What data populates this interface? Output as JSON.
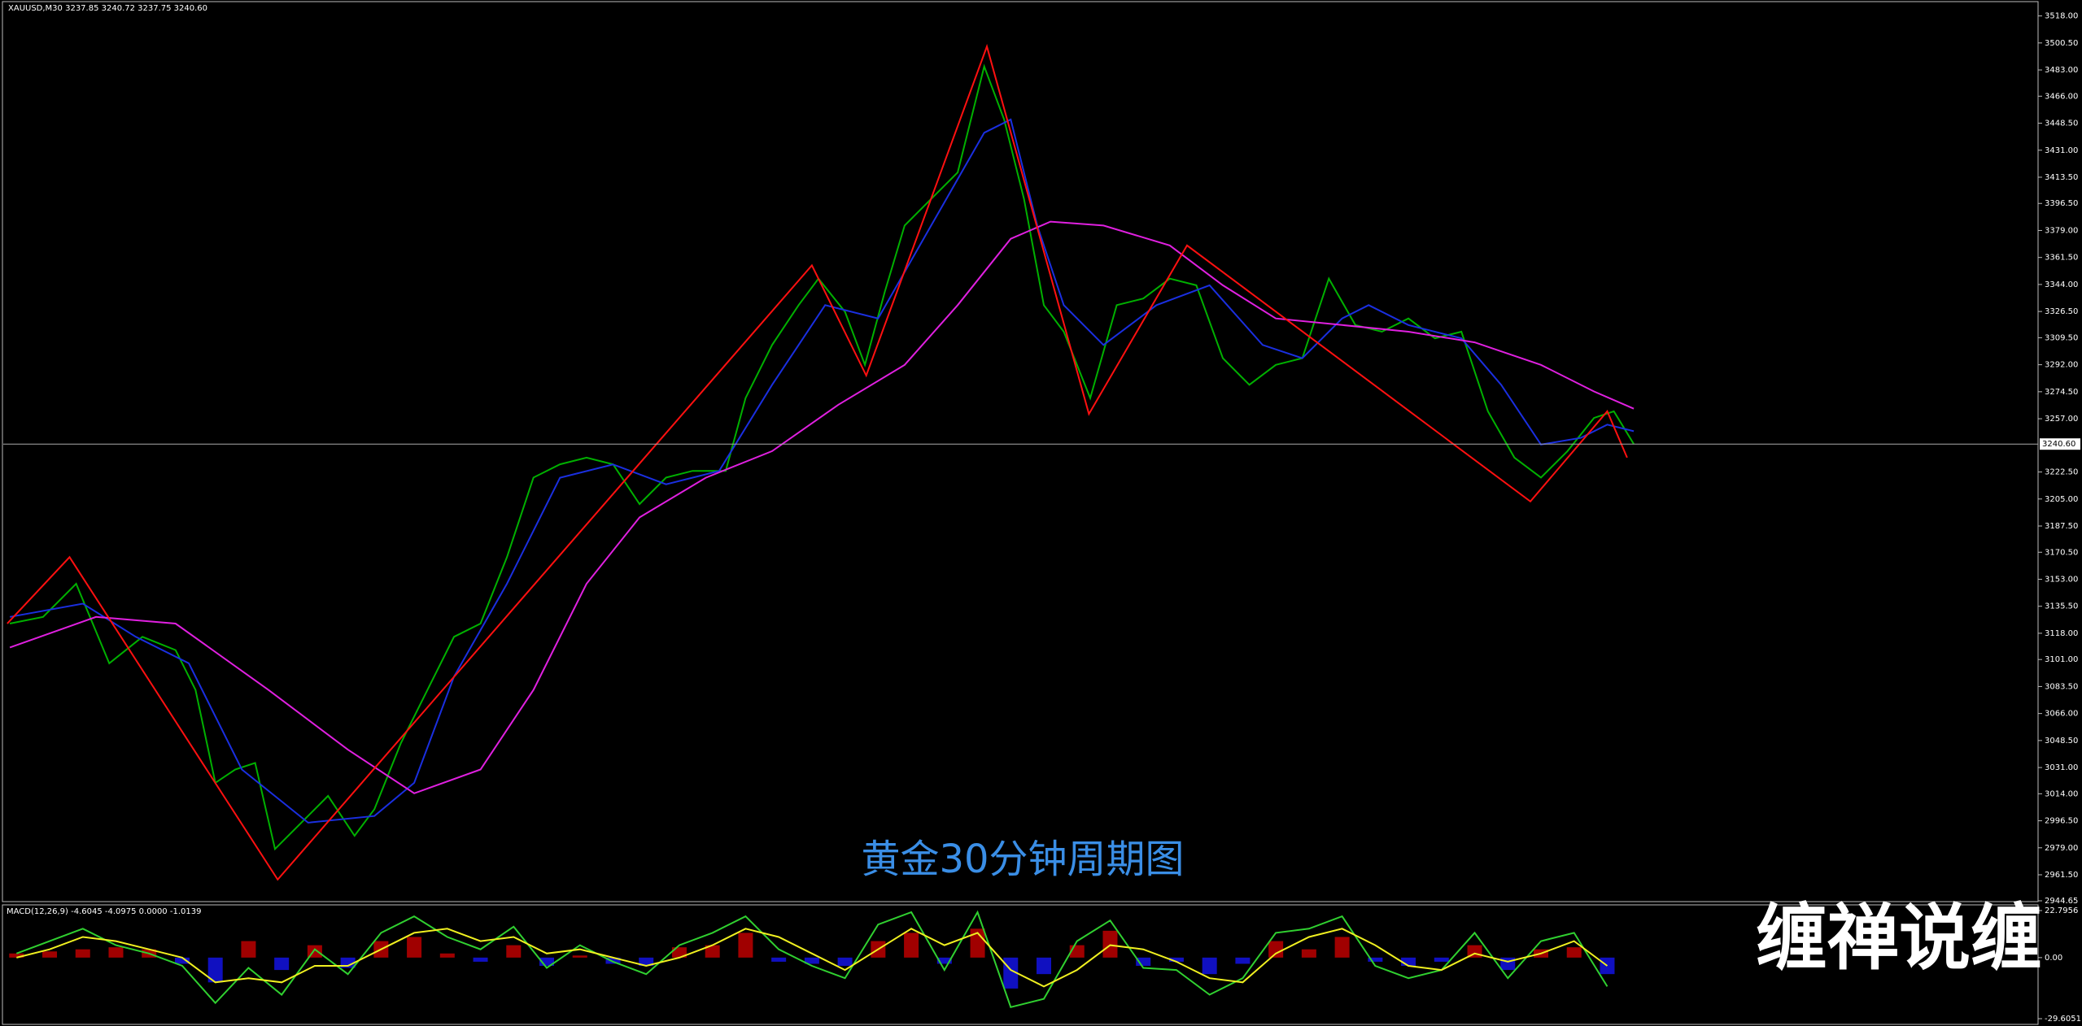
{
  "chart_data": [
    {
      "type": "line",
      "title": "XAUUSD,M30 3237.85 3240.72 3237.75 3240.60",
      "annotation": "黄金30分钟周期图",
      "xlim": [
        0,
        1535
      ],
      "ylim": [
        2944.65,
        3518
      ],
      "yticks": [
        {
          "value": 3518,
          "label": "3518.00"
        },
        {
          "value": 3500.5,
          "label": "3500.50"
        },
        {
          "value": 3483,
          "label": "3483.00"
        },
        {
          "value": 3466,
          "label": "3466.00"
        },
        {
          "value": 3448.5,
          "label": "3448.50"
        },
        {
          "value": 3431,
          "label": "3431.00"
        },
        {
          "value": 3413.5,
          "label": "3413.50"
        },
        {
          "value": 3396.5,
          "label": "3396.50"
        },
        {
          "value": 3379,
          "label": "3379.00"
        },
        {
          "value": 3361.5,
          "label": "3361.50"
        },
        {
          "value": 3344,
          "label": "3344.00"
        },
        {
          "value": 3326.5,
          "label": "3326.50"
        },
        {
          "value": 3309.5,
          "label": "3309.50"
        },
        {
          "value": 3292,
          "label": "3292.00"
        },
        {
          "value": 3274.5,
          "label": "3274.50"
        },
        {
          "value": 3257,
          "label": "3257.00"
        },
        {
          "value": 3222.5,
          "label": "3222.50"
        },
        {
          "value": 3205,
          "label": "3205.00"
        },
        {
          "value": 3187.5,
          "label": "3187.50"
        },
        {
          "value": 3170.5,
          "label": "3170.50"
        },
        {
          "value": 3153,
          "label": "3153.00"
        },
        {
          "value": 3135.5,
          "label": "3135.50"
        },
        {
          "value": 3118,
          "label": "3118.00"
        },
        {
          "value": 3101,
          "label": "3101.00"
        },
        {
          "value": 3083.5,
          "label": "3083.50"
        },
        {
          "value": 3066,
          "label": "3066.00"
        },
        {
          "value": 3048.5,
          "label": "3048.50"
        },
        {
          "value": 3031,
          "label": "3031.00"
        },
        {
          "value": 3014,
          "label": "3014.00"
        },
        {
          "value": 2996.5,
          "label": "2996.50"
        },
        {
          "value": 2979,
          "label": "2979.00"
        },
        {
          "value": 2961.5,
          "label": "2961.50"
        },
        {
          "value": 2944.65,
          "label": "2944.65"
        }
      ],
      "last_price": {
        "value": 3240.6,
        "label": "3240.60"
      },
      "series": [
        {
          "color": "#00b000",
          "x": [
            5,
            30,
            55,
            80,
            105,
            130,
            145,
            160,
            175,
            190,
            205,
            225,
            245,
            265,
            280,
            300,
            320,
            340,
            360,
            380,
            400,
            420,
            440,
            460,
            480,
            500,
            520,
            545,
            560,
            580,
            600,
            615,
            635,
            650,
            665,
            680,
            700,
            720,
            740,
            755,
            770,
            785,
            800,
            820,
            840,
            860,
            880,
            900,
            920,
            940,
            960,
            980,
            1000,
            1020,
            1040,
            1060,
            1080,
            1100,
            1120,
            1140,
            1160,
            1180,
            1200,
            1215,
            1230
          ],
          "values": [
            3124.3,
            3128.6,
            3150.1,
            3098.5,
            3115.7,
            3107.1,
            3081.3,
            3021.1,
            3029.7,
            3034.0,
            2978.2,
            2995.4,
            3012.6,
            2986.8,
            3004.0,
            3046.9,
            3081.3,
            3115.7,
            3124.3,
            3167.3,
            3218.9,
            3227.5,
            3231.8,
            3227.5,
            3201.7,
            3218.9,
            3223.2,
            3223.2,
            3270.4,
            3304.8,
            3330.6,
            3347.8,
            3326.3,
            3291.9,
            3339.2,
            3382.2,
            3399.4,
            3416.6,
            3485.3,
            3451.0,
            3399.4,
            3330.6,
            3313.4,
            3270.4,
            3330.6,
            3334.9,
            3347.8,
            3343.5,
            3296.2,
            3279.0,
            3291.9,
            3296.2,
            3347.8,
            3317.7,
            3313.4,
            3322.0,
            3309.1,
            3313.4,
            3261.8,
            3231.8,
            3218.9,
            3236.0,
            3257.5,
            3261.8,
            3240.6
          ]
        },
        {
          "color": "#1a2fe0",
          "x": [
            5,
            60,
            100,
            140,
            180,
            230,
            280,
            310,
            340,
            380,
            420,
            460,
            500,
            540,
            580,
            620,
            660,
            700,
            740,
            760,
            780,
            800,
            830,
            870,
            910,
            950,
            980,
            1010,
            1030,
            1060,
            1100,
            1130,
            1160,
            1190,
            1210,
            1230
          ],
          "values": [
            3128.6,
            3137.2,
            3115.7,
            3098.5,
            3029.7,
            2995.3,
            2999.6,
            3021.1,
            3089.9,
            3150.1,
            3218.8,
            3227.4,
            3214.5,
            3223.1,
            3279.0,
            3330.6,
            3322.0,
            3382.2,
            3442.3,
            3450.9,
            3382.2,
            3330.6,
            3304.8,
            3330.6,
            3343.5,
            3304.8,
            3296.2,
            3322.0,
            3330.6,
            3317.7,
            3309.1,
            3279.0,
            3240.3,
            3244.6,
            3253.2,
            3248.9
          ]
        },
        {
          "color": "#e020e0",
          "x": [
            5,
            70,
            130,
            200,
            260,
            310,
            360,
            400,
            440,
            480,
            530,
            580,
            630,
            680,
            720,
            760,
            790,
            830,
            880,
            920,
            960,
            1010,
            1060,
            1110,
            1160,
            1200,
            1230
          ],
          "values": [
            3108.8,
            3128.6,
            3124.3,
            3081.3,
            3042.6,
            3014.3,
            3029.7,
            3081.3,
            3150.1,
            3193.1,
            3218.8,
            3236.0,
            3266.1,
            3291.9,
            3330.6,
            3373.6,
            3384.7,
            3382.2,
            3369.3,
            3343.5,
            3322.0,
            3317.7,
            3313.4,
            3306.5,
            3291.9,
            3274.7,
            3263.5
          ]
        },
        {
          "color": "#ff1010",
          "x": [
            3,
            50,
            207,
            610,
            651,
            742,
            819,
            893,
            1152,
            1210,
            1225
          ],
          "values": [
            3124.3,
            3167.3,
            2958.4,
            3356.4,
            3285.0,
            3498.2,
            3260.1,
            3369.3,
            3203.4,
            3261.8,
            3231.8
          ]
        }
      ]
    },
    {
      "type": "macd",
      "title": "MACD(12,26,9) -4.6045 -4.0975 0.0000 -1.0139",
      "xlim": [
        0,
        1535
      ],
      "ylim": [
        -29.6051,
        22.7956
      ],
      "yticks": [
        22.7956,
        {
          "value": 0,
          "label": "0.00"
        },
        -29.6051
      ],
      "series": [
        {
          "style": "histogram",
          "color_positive": "#a00000",
          "color_negative": "#1010c0",
          "x": [
            10,
            35,
            60,
            85,
            110,
            135,
            160,
            185,
            210,
            235,
            260,
            285,
            310,
            335,
            360,
            385,
            410,
            435,
            460,
            485,
            510,
            535,
            560,
            585,
            610,
            635,
            660,
            685,
            710,
            735,
            760,
            785,
            810,
            835,
            860,
            885,
            910,
            935,
            960,
            985,
            1010,
            1035,
            1060,
            1085,
            1110,
            1135,
            1160,
            1185,
            1210
          ],
          "values": [
            2,
            3,
            4,
            5,
            4,
            -3,
            -12,
            8,
            -6,
            6,
            -5,
            8,
            10,
            2,
            -2,
            6,
            -4,
            1,
            -3,
            -4,
            5,
            6,
            12,
            -2,
            -3,
            -4,
            8,
            12,
            -3,
            14,
            -15,
            -8,
            6,
            13,
            -4,
            -2,
            -8,
            -3,
            8,
            4,
            10,
            -2,
            -4,
            -2,
            6,
            -6,
            4,
            5,
            -8
          ]
        },
        {
          "style": "line",
          "color": "#30d030",
          "x": [
            10,
            35,
            60,
            85,
            110,
            135,
            160,
            185,
            210,
            235,
            260,
            285,
            310,
            335,
            360,
            385,
            410,
            435,
            460,
            485,
            510,
            535,
            560,
            585,
            610,
            635,
            660,
            685,
            710,
            735,
            760,
            785,
            810,
            835,
            860,
            885,
            910,
            935,
            960,
            985,
            1010,
            1035,
            1060,
            1085,
            1110,
            1135,
            1160,
            1185,
            1210
          ],
          "values": [
            2,
            8,
            14,
            6,
            2,
            -4,
            -22,
            -5,
            -18,
            4,
            -8,
            12,
            20,
            10,
            4,
            15,
            -5,
            6,
            -2,
            -8,
            6,
            12,
            20,
            4,
            -4,
            -10,
            16,
            22,
            -6,
            22,
            -24,
            -20,
            8,
            18,
            -5,
            -6,
            -18,
            -10,
            12,
            14,
            20,
            -4,
            -10,
            -6,
            12,
            -10,
            8,
            12,
            -14
          ]
        },
        {
          "style": "line",
          "color": "#f0f020",
          "x": [
            10,
            35,
            60,
            85,
            110,
            135,
            160,
            185,
            210,
            235,
            260,
            285,
            310,
            335,
            360,
            385,
            410,
            435,
            460,
            485,
            510,
            535,
            560,
            585,
            610,
            635,
            660,
            685,
            710,
            735,
            760,
            785,
            810,
            835,
            860,
            885,
            910,
            935,
            960,
            985,
            1010,
            1035,
            1060,
            1085,
            1110,
            1135,
            1160,
            1185,
            1210
          ],
          "values": [
            0,
            4,
            10,
            8,
            4,
            0,
            -12,
            -10,
            -12,
            -4,
            -4,
            4,
            12,
            14,
            8,
            10,
            2,
            4,
            0,
            -4,
            0,
            6,
            14,
            10,
            2,
            -6,
            4,
            14,
            6,
            12,
            -6,
            -14,
            -6,
            6,
            4,
            -2,
            -10,
            -12,
            2,
            10,
            14,
            6,
            -4,
            -6,
            2,
            -2,
            2,
            8,
            -4
          ]
        }
      ]
    }
  ],
  "watermark": "缠禅说缠"
}
